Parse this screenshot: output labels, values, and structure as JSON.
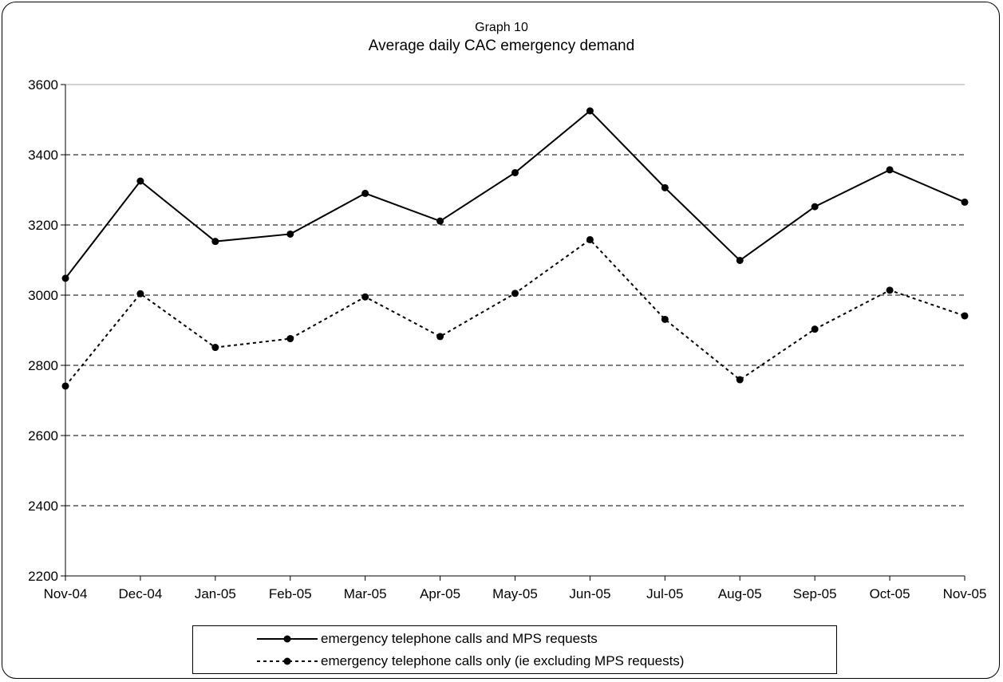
{
  "chart_data": {
    "type": "line",
    "title": "Graph 10",
    "subtitle": "Average daily CAC emergency demand",
    "categories": [
      "Nov-04",
      "Dec-04",
      "Jan-05",
      "Feb-05",
      "Mar-05",
      "Apr-05",
      "May-05",
      "Jun-05",
      "Jul-05",
      "Aug-05",
      "Sep-05",
      "Oct-05",
      "Nov-05"
    ],
    "series": [
      {
        "name": "emergency telephone calls and MPS requests",
        "line_style": "solid",
        "color": "#000000",
        "values": [
          3048,
          3325,
          3153,
          3174,
          3290,
          3211,
          3349,
          3525,
          3306,
          3099,
          3252,
          3357,
          3265
        ]
      },
      {
        "name": "emergency telephone calls only (ie excluding MPS requests)",
        "line_style": "dotted",
        "color": "#000000",
        "values": [
          2741,
          3004,
          2851,
          2876,
          2995,
          2882,
          3005,
          3158,
          2931,
          2759,
          2903,
          3014,
          2941
        ]
      }
    ],
    "xlabel": "",
    "ylabel": "",
    "ylim": [
      2200,
      3600
    ],
    "yticks": [
      2200,
      2400,
      2600,
      2800,
      3000,
      3200,
      3400,
      3600
    ],
    "grid": "horizontal dashed",
    "legend": "bottom"
  }
}
